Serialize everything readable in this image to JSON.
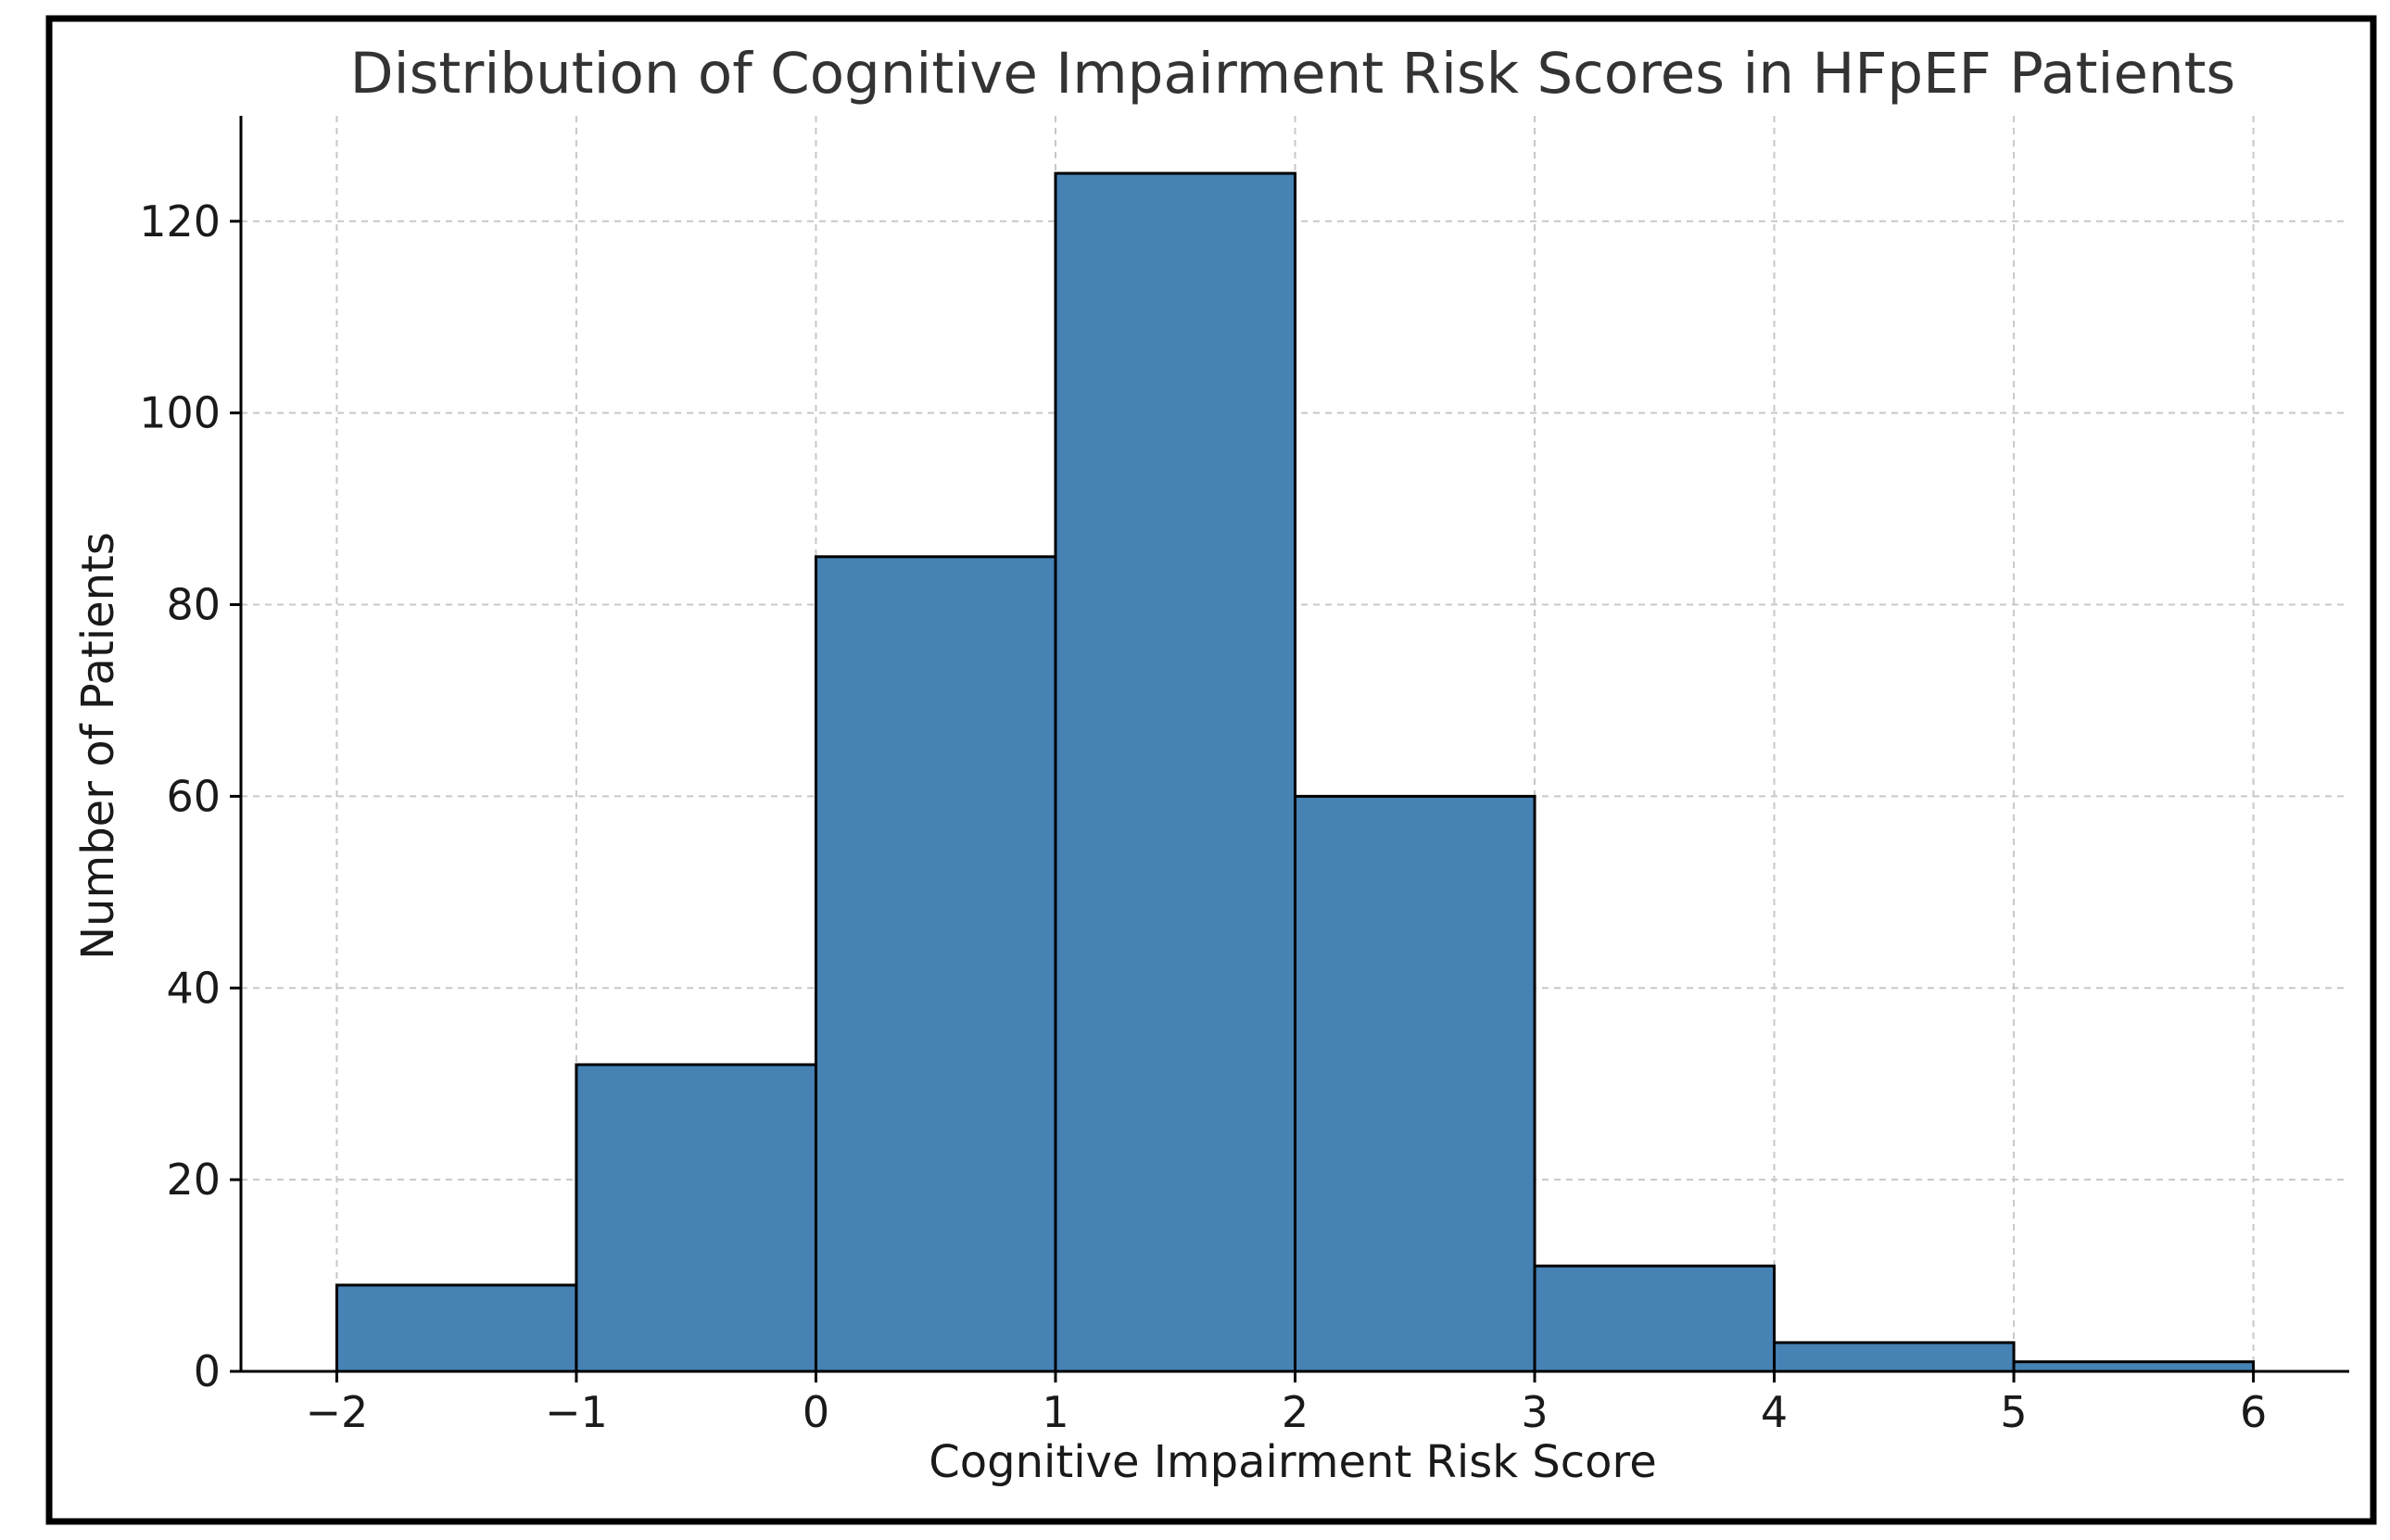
{
  "chart_data": {
    "type": "bar",
    "title": "Distribution of Cognitive Impairment Risk Scores in HFpEF Patients",
    "xlabel": "Cognitive Impairment Risk Score",
    "ylabel": "Number of Patients",
    "bin_edges": [
      -2,
      -1,
      0,
      1,
      2,
      3,
      4,
      5,
      6
    ],
    "values": [
      9,
      32,
      85,
      125,
      60,
      11,
      3,
      1
    ],
    "xlim": [
      -2.4,
      6.4
    ],
    "ylim": [
      0,
      131
    ],
    "xticks": [
      -2,
      -1,
      0,
      1,
      2,
      3,
      4,
      5,
      6
    ],
    "xtick_labels": [
      "−2",
      "−1",
      "0",
      "1",
      "2",
      "3",
      "4",
      "5",
      "6"
    ],
    "yticks": [
      0,
      20,
      40,
      60,
      80,
      100,
      120
    ],
    "ytick_labels": [
      "0",
      "20",
      "40",
      "60",
      "80",
      "100",
      "120"
    ],
    "grid": true,
    "bar_color": "#4682b4",
    "edge_color": "#000000",
    "title_color": "#333333"
  }
}
